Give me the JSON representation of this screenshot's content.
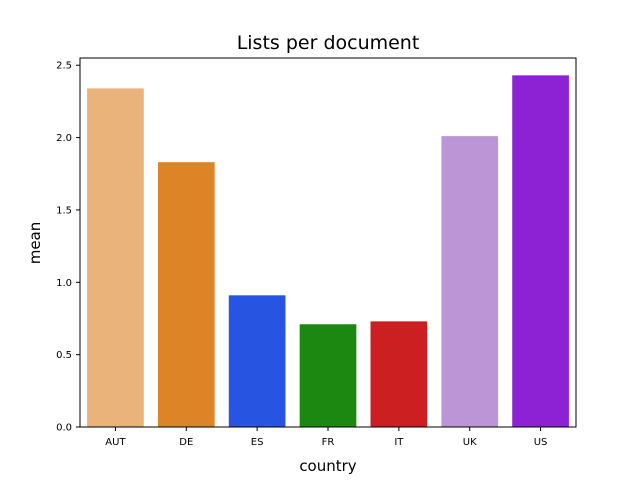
{
  "chart_data": {
    "type": "bar",
    "title": "Lists per document",
    "xlabel": "country",
    "ylabel": "mean",
    "categories": [
      "AUT",
      "DE",
      "ES",
      "FR",
      "IT",
      "UK",
      "US"
    ],
    "values": [
      2.34,
      1.83,
      0.91,
      0.71,
      0.73,
      2.01,
      2.43
    ],
    "colors": [
      "#eab37b",
      "#dd8426",
      "#2754e1",
      "#1c8812",
      "#cc1f21",
      "#bc95d6",
      "#8c22d4"
    ],
    "ylim": [
      0,
      2.55
    ],
    "yticks": [
      0.0,
      0.5,
      1.0,
      1.5,
      2.0,
      2.5
    ],
    "ytick_labels": [
      "0.0",
      "0.5",
      "1.0",
      "1.5",
      "2.0",
      "2.5"
    ],
    "grid": false,
    "legend": "none"
  }
}
